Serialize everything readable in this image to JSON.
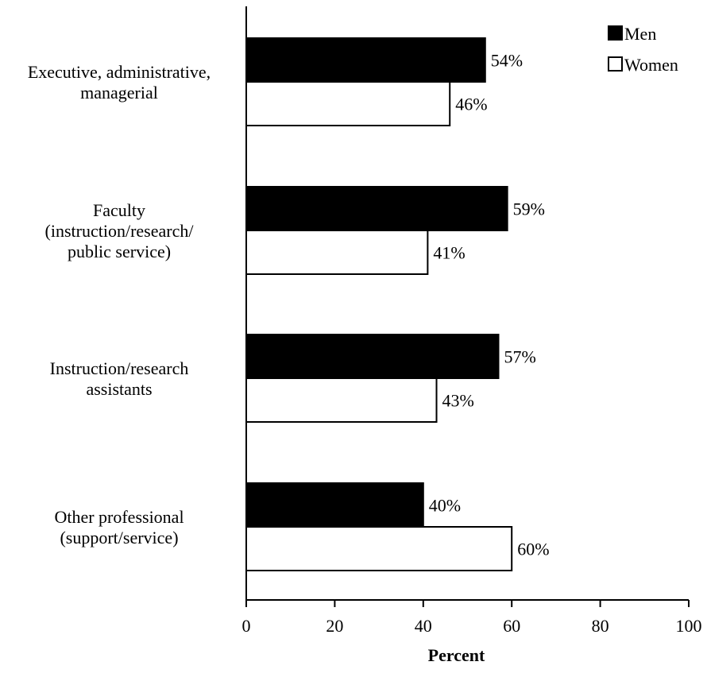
{
  "chart_data": {
    "type": "bar",
    "orientation": "horizontal",
    "categories": [
      [
        "Executive, administrative,",
        "managerial"
      ],
      [
        "Faculty",
        "(instruction/research/",
        "public service)"
      ],
      [
        "Instruction/research",
        "assistants"
      ],
      [
        "Other professional",
        "(support/service)"
      ]
    ],
    "series": [
      {
        "name": "Men",
        "values": [
          54,
          59,
          57,
          40
        ],
        "labels": [
          "54%",
          "59%",
          "57%",
          "40%"
        ],
        "color": "#000000"
      },
      {
        "name": "Women",
        "values": [
          46,
          41,
          43,
          60
        ],
        "labels": [
          "46%",
          "41%",
          "43%",
          "60%"
        ],
        "color": "#ffffff"
      }
    ],
    "xlabel": "Percent",
    "xlim": [
      0,
      100
    ],
    "xticks": [
      0,
      20,
      40,
      60,
      80,
      100
    ],
    "grid": false,
    "legend_position": "top-right"
  }
}
